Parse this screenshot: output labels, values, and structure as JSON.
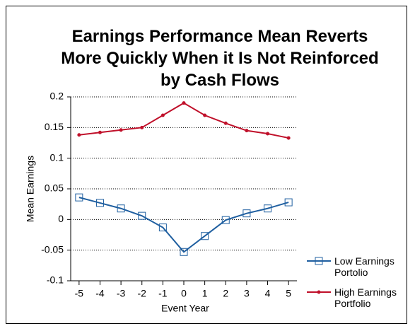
{
  "chart_data": {
    "type": "line",
    "title": "Earnings Performance Mean Reverts More Quickly When it Is Not Reinforced by Cash Flows",
    "x_label": "Event Year",
    "y_label": "Mean Earnings",
    "x": [
      -5,
      -4,
      -3,
      -2,
      -1,
      0,
      1,
      2,
      3,
      4,
      5
    ],
    "series": [
      {
        "name": "Low Earnings Portolio",
        "color": "#1f5fa0",
        "marker": "square",
        "values": [
          0.036,
          0.027,
          0.018,
          0.006,
          -0.013,
          -0.053,
          -0.027,
          -0.001,
          0.01,
          0.018,
          0.028
        ]
      },
      {
        "name": "High Earnings Portfolio",
        "color": "#c0102a",
        "marker": "dot",
        "values": [
          0.138,
          0.142,
          0.146,
          0.15,
          0.17,
          0.19,
          0.17,
          0.157,
          0.145,
          0.14,
          0.133
        ]
      }
    ],
    "xlim": [
      -5.4,
      5.4
    ],
    "xticks": [
      -5,
      -4,
      -3,
      -2,
      -1,
      0,
      1,
      2,
      3,
      4,
      5
    ],
    "ylim": [
      -0.1,
      0.2
    ],
    "yticks": [
      0.2,
      0.15,
      0.1,
      0.05,
      0,
      -0.05,
      -0.1
    ],
    "grid": true,
    "legend": "right"
  }
}
